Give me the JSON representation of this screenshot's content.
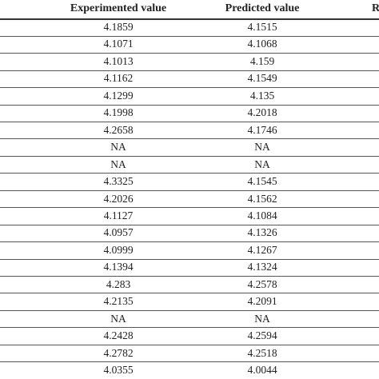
{
  "table": {
    "header": [
      "Experimented value",
      "Predicted value",
      "R"
    ],
    "rows": [
      [
        "4.1859",
        "4.1515"
      ],
      [
        "4.1071",
        "4.1068"
      ],
      [
        "4.1013",
        "4.159"
      ],
      [
        "4.1162",
        "4.1549"
      ],
      [
        "4.1299",
        "4.135"
      ],
      [
        "4.1998",
        "4.2018"
      ],
      [
        "4.2658",
        "4.1746"
      ],
      [
        "NA",
        "NA"
      ],
      [
        "NA",
        "NA"
      ],
      [
        "4.3325",
        "4.1545"
      ],
      [
        "4.2026",
        "4.1562"
      ],
      [
        "4.1127",
        "4.1084"
      ],
      [
        "4.0957",
        "4.1326"
      ],
      [
        "4.0999",
        "4.1267"
      ],
      [
        "4.1394",
        "4.1324"
      ],
      [
        "4.283",
        "4.2578"
      ],
      [
        "4.2135",
        "4.2091"
      ],
      [
        "NA",
        "NA"
      ],
      [
        "4.2428",
        "4.2594"
      ],
      [
        "4.2782",
        "4.2518"
      ],
      [
        "4.0355",
        "4.0044"
      ]
    ]
  }
}
